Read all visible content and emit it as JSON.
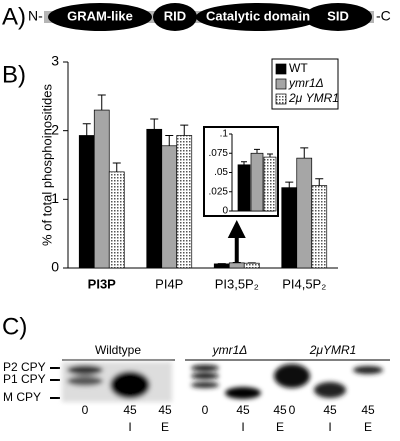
{
  "panel_a": {
    "label": "A)",
    "n_term": "N-",
    "c_term": "-C",
    "domains": [
      "GRAM-like",
      "RID",
      "Catalytic domain",
      "SID"
    ]
  },
  "chart_data": {
    "type": "bar",
    "label": "B)",
    "ylabel": "% of total phosphoinositides",
    "categories": [
      "PI3P",
      "PI4P",
      "PI3,5P₂",
      "PI4,5P₂"
    ],
    "series": [
      {
        "name": "WT",
        "color": "#000000",
        "values": [
          1.93,
          2.02,
          0.06,
          1.17
        ],
        "errors": [
          0.17,
          0.15,
          0.004,
          0.08
        ]
      },
      {
        "name": "ymr1Δ",
        "color": "#a6a6a6",
        "values": [
          2.3,
          1.78,
          0.075,
          1.6
        ],
        "errors": [
          0.22,
          0.15,
          0.005,
          0.15
        ]
      },
      {
        "name": "2μ YMR1",
        "color": "#ffffff",
        "pattern": "dots",
        "values": [
          1.4,
          1.93,
          0.07,
          1.2
        ],
        "errors": [
          0.13,
          0.15,
          0.004,
          0.1
        ]
      }
    ],
    "ylim": [
      0,
      3
    ],
    "yticks": [
      0,
      1,
      2,
      3
    ],
    "inset": {
      "category": 2,
      "ylim": [
        0,
        0.1
      ],
      "yticks": [
        0,
        {
          "value": 0.025,
          "label": ".025"
        },
        {
          "value": 0.05,
          "label": ".05"
        },
        {
          "value": 0.075,
          "label": ".075"
        },
        {
          "value": 0.1,
          "label": ".1"
        }
      ]
    }
  },
  "panel_c": {
    "label": "C)",
    "markers": [
      "P2 CPY",
      "P1 CPY",
      "M CPY"
    ],
    "groups": [
      {
        "title": "Wildtype",
        "lanes": [
          {
            "time": "0"
          },
          {
            "time": "45",
            "fraction": "I"
          },
          {
            "time": "45",
            "fraction": "E"
          }
        ]
      },
      {
        "title": "ymr1Δ",
        "lanes": [
          {
            "time": "0"
          },
          {
            "time": "45",
            "fraction": "I"
          },
          {
            "time": "45",
            "fraction": "E"
          }
        ]
      },
      {
        "title": "2μYMR1",
        "lanes": [
          {
            "time": "0"
          },
          {
            "time": "45",
            "fraction": "I"
          },
          {
            "time": "45",
            "fraction": "E"
          }
        ]
      }
    ]
  }
}
